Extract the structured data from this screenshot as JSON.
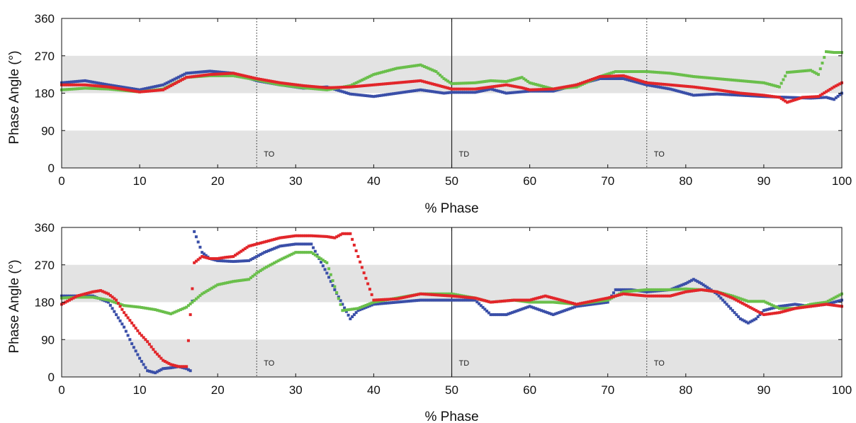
{
  "chart_data": [
    {
      "type": "scatter",
      "title": "",
      "xlabel": "% Phase",
      "ylabel": "Phase Angle (°)",
      "xlim": [
        0,
        100
      ],
      "ylim": [
        0,
        360
      ],
      "xticks": [
        0,
        10,
        20,
        30,
        40,
        50,
        60,
        70,
        80,
        90,
        100
      ],
      "yticks": [
        0,
        90,
        180,
        270,
        360
      ],
      "shaded_bands": [
        [
          0,
          90
        ],
        [
          180,
          270
        ]
      ],
      "event_lines": [
        {
          "x": 25,
          "label": "TO",
          "style": "dotted"
        },
        {
          "x": 50,
          "label": "TD",
          "style": "solid"
        },
        {
          "x": 75,
          "label": "TO",
          "style": "dotted"
        }
      ],
      "grid": false,
      "series": [
        {
          "color": "#3a4fa8",
          "x": [
            0,
            3,
            6,
            10,
            13,
            16,
            19,
            22,
            25,
            28,
            31,
            34,
            37,
            40,
            43,
            46,
            49,
            50,
            53,
            55,
            57,
            60,
            63,
            66,
            69,
            72,
            75,
            78,
            81,
            84,
            87,
            90,
            93,
            96,
            98,
            99,
            100
          ],
          "y": [
            205,
            210,
            200,
            188,
            200,
            228,
            233,
            228,
            210,
            200,
            192,
            195,
            178,
            172,
            180,
            188,
            180,
            182,
            182,
            190,
            180,
            185,
            185,
            200,
            215,
            215,
            200,
            190,
            175,
            178,
            175,
            172,
            170,
            168,
            170,
            165,
            180
          ]
        },
        {
          "color": "#6abf4b",
          "x": [
            0,
            3,
            6,
            10,
            13,
            16,
            19,
            22,
            25,
            28,
            31,
            34,
            37,
            40,
            43,
            46,
            48,
            49,
            50,
            53,
            55,
            57,
            59,
            60,
            63,
            66,
            69,
            71,
            75,
            78,
            81,
            84,
            87,
            90,
            92,
            93,
            96,
            97,
            98,
            99,
            100
          ],
          "y": [
            188,
            192,
            190,
            183,
            190,
            218,
            222,
            222,
            212,
            200,
            193,
            188,
            198,
            225,
            240,
            248,
            232,
            215,
            203,
            205,
            210,
            208,
            218,
            205,
            190,
            195,
            220,
            232,
            232,
            228,
            220,
            215,
            210,
            205,
            195,
            230,
            235,
            225,
            280,
            278,
            278
          ]
        },
        {
          "color": "#e2262a",
          "x": [
            0,
            3,
            6,
            10,
            13,
            16,
            19,
            22,
            25,
            28,
            31,
            34,
            37,
            40,
            43,
            46,
            49,
            50,
            53,
            55,
            57,
            59,
            60,
            63,
            66,
            69,
            72,
            75,
            78,
            81,
            84,
            87,
            90,
            92,
            93,
            95,
            97,
            99,
            100
          ],
          "y": [
            200,
            200,
            195,
            183,
            188,
            218,
            225,
            228,
            215,
            205,
            198,
            193,
            195,
            200,
            205,
            210,
            195,
            190,
            190,
            195,
            200,
            193,
            188,
            190,
            200,
            220,
            222,
            205,
            200,
            195,
            188,
            180,
            175,
            170,
            158,
            170,
            172,
            195,
            205
          ]
        }
      ]
    },
    {
      "type": "scatter",
      "title": "",
      "xlabel": "% Phase",
      "ylabel": "Phase Angle (°)",
      "xlim": [
        0,
        100
      ],
      "ylim": [
        0,
        360
      ],
      "xticks": [
        0,
        10,
        20,
        30,
        40,
        50,
        60,
        70,
        80,
        90,
        100
      ],
      "yticks": [
        0,
        90,
        180,
        270,
        360
      ],
      "shaded_bands": [
        [
          0,
          90
        ],
        [
          180,
          270
        ]
      ],
      "event_lines": [
        {
          "x": 25,
          "label": "TO",
          "style": "dotted"
        },
        {
          "x": 50,
          "label": "TD",
          "style": "solid"
        },
        {
          "x": 75,
          "label": "TO",
          "style": "dotted"
        }
      ],
      "grid": false,
      "series": [
        {
          "color": "#3a4fa8",
          "x": [
            0,
            2,
            4,
            6,
            7,
            8,
            9,
            10,
            11,
            12,
            13,
            14,
            15,
            16,
            16.5,
            17,
            18,
            19,
            20,
            22,
            24,
            26,
            28,
            30,
            32,
            34,
            35,
            36,
            37,
            38,
            40,
            43,
            46,
            50,
            53,
            55,
            57,
            60,
            63,
            66,
            70,
            71,
            73,
            75,
            78,
            80,
            81,
            82,
            84,
            85,
            86,
            87,
            88,
            89,
            90,
            92,
            94,
            96,
            98,
            100
          ],
          "y": [
            195,
            195,
            195,
            180,
            150,
            120,
            80,
            45,
            15,
            10,
            20,
            22,
            25,
            20,
            15,
            350,
            300,
            285,
            280,
            278,
            280,
            300,
            315,
            320,
            320,
            250,
            210,
            175,
            140,
            160,
            175,
            180,
            185,
            185,
            185,
            150,
            150,
            170,
            150,
            170,
            180,
            210,
            210,
            205,
            210,
            225,
            235,
            225,
            200,
            180,
            160,
            140,
            130,
            140,
            160,
            170,
            175,
            170,
            175,
            185
          ]
        },
        {
          "color": "#6abf4b",
          "x": [
            0,
            2,
            4,
            6,
            8,
            10,
            12,
            14,
            16,
            18,
            20,
            22,
            24,
            25,
            26,
            28,
            30,
            32,
            34,
            36,
            38,
            40,
            43,
            46,
            50,
            53,
            55,
            58,
            60,
            63,
            66,
            70,
            72,
            75,
            78,
            80,
            82,
            84,
            86,
            88,
            90,
            92,
            94,
            96,
            98,
            100
          ],
          "y": [
            190,
            192,
            192,
            185,
            172,
            168,
            162,
            152,
            168,
            200,
            222,
            230,
            235,
            250,
            262,
            282,
            300,
            300,
            275,
            160,
            165,
            180,
            190,
            200,
            200,
            190,
            180,
            185,
            180,
            180,
            175,
            185,
            205,
            210,
            210,
            212,
            210,
            205,
            195,
            182,
            182,
            165,
            165,
            175,
            180,
            200
          ]
        },
        {
          "color": "#e2262a",
          "x": [
            0,
            2,
            4,
            5,
            6,
            7,
            8,
            9,
            10,
            11,
            12,
            13,
            14,
            15,
            16,
            17,
            18,
            19,
            20,
            21,
            22,
            24,
            26,
            28,
            30,
            32,
            34,
            35,
            36,
            37,
            38,
            40,
            43,
            46,
            50,
            53,
            55,
            58,
            60,
            62,
            64,
            66,
            70,
            72,
            75,
            78,
            80,
            82,
            84,
            86,
            88,
            90,
            92,
            94,
            96,
            98,
            100
          ],
          "y": [
            175,
            195,
            205,
            208,
            200,
            185,
            155,
            130,
            105,
            85,
            60,
            40,
            30,
            25,
            25,
            275,
            290,
            285,
            285,
            288,
            290,
            315,
            325,
            335,
            340,
            340,
            338,
            335,
            345,
            345,
            290,
            185,
            188,
            200,
            195,
            190,
            180,
            185,
            185,
            195,
            185,
            175,
            190,
            200,
            195,
            195,
            205,
            210,
            205,
            190,
            170,
            150,
            155,
            165,
            170,
            175,
            170
          ]
        }
      ]
    }
  ]
}
